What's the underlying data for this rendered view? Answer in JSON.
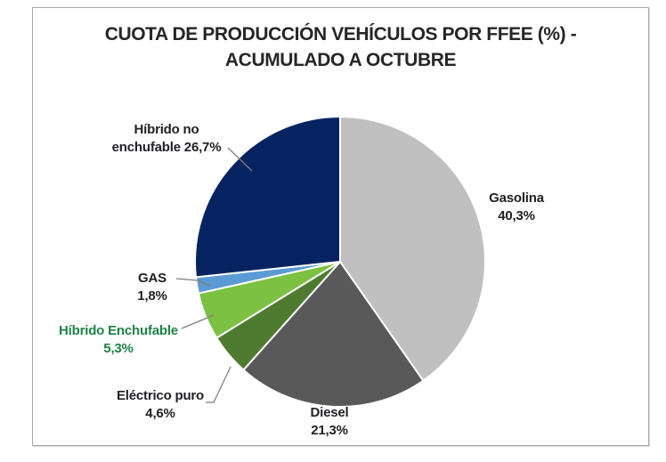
{
  "title": {
    "line1": "CUOTA DE PRODUCCIÓN VEHÍCULOS POR FFEE (%)  -",
    "line2": "ACUMULADO A OCTUBRE"
  },
  "chart_data": {
    "type": "pie",
    "title": "CUOTA DE PRODUCCIÓN VEHÍCULOS POR FFEE (%) - ACUMULADO A OCTUBRE",
    "start_angle_deg": 0,
    "direction": "clockwise",
    "units": "%",
    "legend_position": "none",
    "slices": [
      {
        "key": "gasolina",
        "label": "Gasolina",
        "value": 40.3,
        "display": "40,3%",
        "color": "#c0c0c0"
      },
      {
        "key": "diesel",
        "label": "Diesel",
        "value": 21.3,
        "display": "21,3%",
        "color": "#595959"
      },
      {
        "key": "electrico-puro",
        "label": "Eléctrico puro",
        "value": 4.6,
        "display": "4,6%",
        "color": "#4f7b31"
      },
      {
        "key": "hibrido-enchufable",
        "label": "Híbrido Enchufable",
        "value": 5.3,
        "display": "5,3%",
        "color": "#7dc143"
      },
      {
        "key": "gas",
        "label": "GAS",
        "value": 1.8,
        "display": "1,8%",
        "color": "#5b9bd5"
      },
      {
        "key": "hibrido-no-enchufable",
        "label": "Híbrido no enchufable",
        "value": 26.7,
        "display": "26,7%",
        "color": "#062361"
      }
    ]
  },
  "labels": {
    "hibrido_no": {
      "line1": "Híbrido no",
      "line2": "enchufable 26,7%"
    }
  },
  "colors": {
    "label_text": "#212126",
    "green_label_text": "#1e8246",
    "leader_line": "#7f7f7f",
    "box_border": "#a8a8a8",
    "slice_separator": "#ffffff"
  }
}
